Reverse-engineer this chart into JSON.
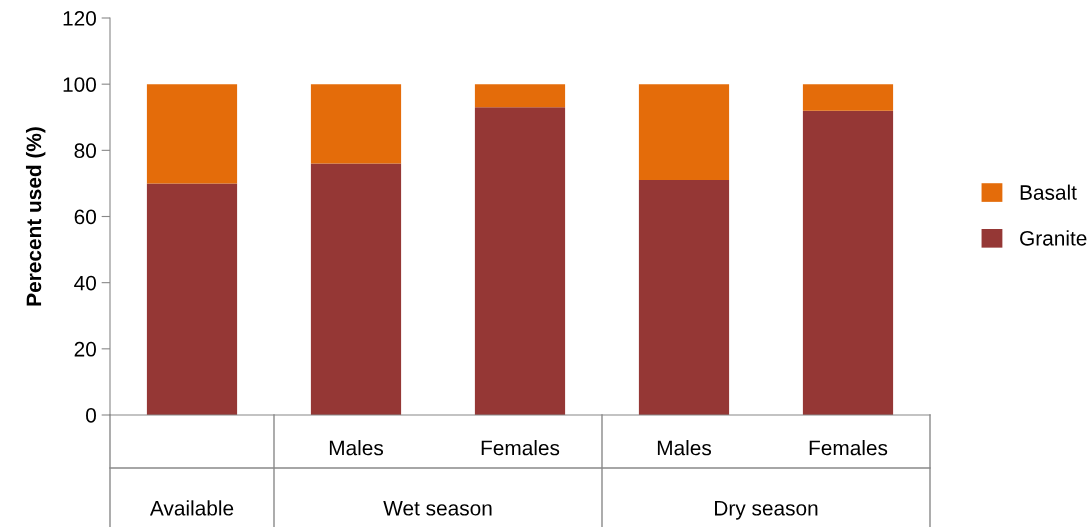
{
  "chart_data": {
    "type": "bar",
    "stacked": true,
    "ylabel": "Perecent used (%)",
    "categories": [
      null,
      "Males",
      "Females",
      "Males",
      "Females"
    ],
    "series": [
      {
        "name": "Granite",
        "color": "#953735",
        "values": [
          70,
          76,
          93,
          71,
          92
        ]
      },
      {
        "name": "Basalt",
        "color": "#e46c0a",
        "values": [
          30,
          24,
          7,
          29,
          8
        ]
      }
    ],
    "annotations": [
      "Available",
      "Wet season",
      "Dry season"
    ],
    "ylim": [
      0,
      120
    ],
    "yticks": [
      0,
      20,
      40,
      60,
      80,
      100,
      120
    ],
    "grid": false,
    "legend": "right"
  }
}
